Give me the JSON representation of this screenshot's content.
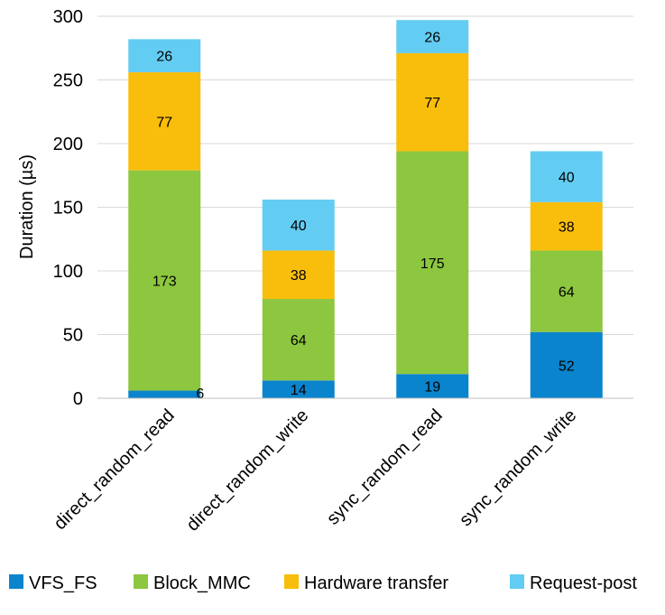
{
  "chart_data": {
    "type": "bar",
    "stacked": true,
    "categories": [
      "direct_random_read",
      "direct_random_write",
      "sync_random_read",
      "sync_random_write"
    ],
    "series": [
      {
        "name": "VFS_FS",
        "color": "#0a84cc",
        "values": [
          6,
          14,
          19,
          52
        ]
      },
      {
        "name": "Block_MMC",
        "color": "#8dc63f",
        "values": [
          173,
          64,
          175,
          64
        ]
      },
      {
        "name": "Hardware transfer",
        "color": "#f9be0c",
        "values": [
          77,
          38,
          77,
          38
        ]
      },
      {
        "name": "Request-post",
        "color": "#63ccf2",
        "values": [
          26,
          40,
          26,
          40
        ]
      }
    ],
    "ylabel": "Duration  (µs)",
    "ylim": [
      0,
      300
    ],
    "yticks": [
      "0",
      "50",
      "100",
      "150",
      "200",
      "250",
      "300"
    ],
    "grid": true,
    "legend": "bottom"
  }
}
